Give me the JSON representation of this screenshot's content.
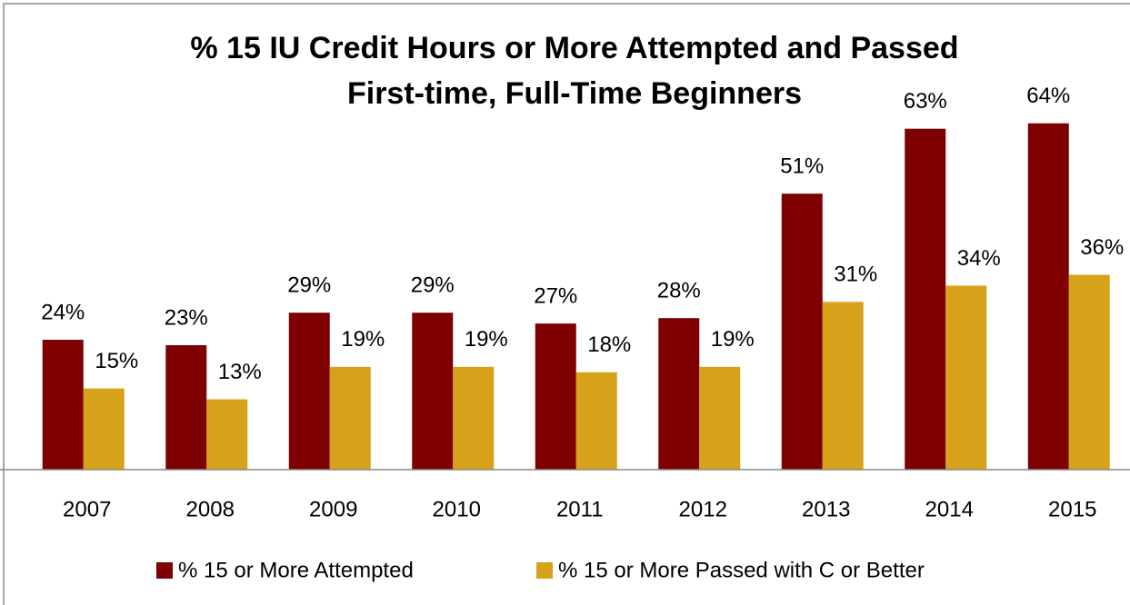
{
  "chart_data": {
    "type": "bar",
    "title": "% 15 IU Credit Hours or More Attempted and Passed",
    "subtitle": "First-time, Full-Time Beginners",
    "categories": [
      "2007",
      "2008",
      "2009",
      "2010",
      "2011",
      "2012",
      "2013",
      "2014",
      "2015"
    ],
    "series": [
      {
        "name": "% 15 or More Attempted",
        "color": "#7f0000",
        "values": [
          24,
          23,
          29,
          29,
          27,
          28,
          51,
          63,
          64
        ],
        "value_labels": [
          "24%",
          "23%",
          "29%",
          "29%",
          "27%",
          "28%",
          "51%",
          "63%",
          "64%"
        ]
      },
      {
        "name": "% 15 or More Passed with C or Better",
        "color": "#d6a21a",
        "values": [
          15,
          13,
          19,
          19,
          18,
          19,
          31,
          34,
          36
        ],
        "value_labels": [
          "15%",
          "13%",
          "19%",
          "19%",
          "18%",
          "19%",
          "31%",
          "34%",
          "36%"
        ]
      }
    ],
    "ylim": [
      0,
      70
    ],
    "legend": "bottom"
  }
}
